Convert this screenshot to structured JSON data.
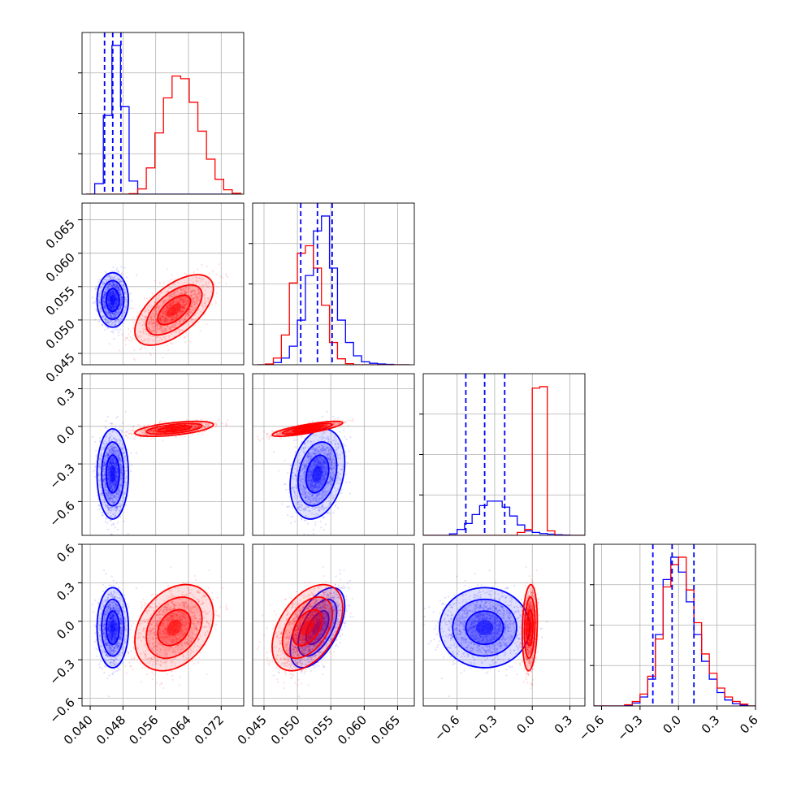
{
  "chart_data": {
    "type": "corner",
    "grid": true,
    "series": [
      {
        "color": "#0000ff",
        "means": [
          0.0455,
          0.053,
          -0.38,
          -0.05
        ],
        "sds": [
          0.0016,
          0.0017,
          0.15,
          0.13
        ],
        "corr": [
          0.0,
          0.0,
          0.25,
          0.0,
          0.55,
          0.0
        ],
        "quantiles": [
          [
            0.0435,
            0.0455,
            0.0475
          ],
          [
            0.0505,
            0.053,
            0.0552
          ],
          [
            -0.53,
            -0.38,
            -0.22
          ],
          [
            -0.2,
            -0.05,
            0.12
          ]
        ]
      },
      {
        "color": "#ff0000",
        "means": [
          0.0605,
          0.0515,
          -0.02,
          -0.05
        ],
        "sds": [
          0.004,
          0.0022,
          0.025,
          0.14
        ],
        "corr": [
          0.6,
          0.55,
          0.8,
          0.3,
          0.45,
          0.15
        ],
        "quantiles": []
      }
    ],
    "histograms": [
      {
        "bin_edges": [
          0.039,
          0.0411,
          0.0432,
          0.0453,
          0.0474,
          0.0495,
          0.0516,
          0.0537,
          0.0558,
          0.0579,
          0.06,
          0.0621,
          0.0642,
          0.0663,
          0.0684,
          0.0705,
          0.0726,
          0.0747,
          0.0768
        ],
        "series_counts": [
          [
            0,
            120,
            900,
            1700,
            1000,
            150,
            0,
            0,
            0,
            0,
            0,
            0,
            0,
            0,
            0,
            0,
            0,
            0
          ],
          [
            0,
            0,
            0,
            0,
            0,
            5,
            60,
            300,
            700,
            1100,
            1350,
            1320,
            1050,
            720,
            400,
            170,
            50,
            10
          ]
        ]
      },
      {
        "bin_edges": [
          0.044,
          0.0452,
          0.0464,
          0.0476,
          0.0488,
          0.05,
          0.0512,
          0.0524,
          0.0536,
          0.0548,
          0.056,
          0.0572,
          0.0584,
          0.0596,
          0.0608,
          0.062,
          0.0632,
          0.0644,
          0.0656,
          0.0668
        ],
        "series_counts": [
          [
            0,
            5,
            30,
            90,
            250,
            600,
            1200,
            1800,
            2000,
            1300,
            600,
            300,
            120,
            40,
            20,
            10,
            5,
            0,
            0
          ],
          [
            0,
            10,
            90,
            400,
            1100,
            1500,
            1600,
            1300,
            800,
            300,
            80,
            15,
            0,
            0,
            0,
            0,
            0,
            0,
            0
          ]
        ]
      },
      {
        "bin_edges": [
          -0.9,
          -0.84,
          -0.78,
          -0.72,
          -0.66,
          -0.6,
          -0.54,
          -0.48,
          -0.42,
          -0.36,
          -0.3,
          -0.24,
          -0.18,
          -0.12,
          -0.06,
          0.0,
          0.06,
          0.12,
          0.18,
          0.24,
          0.3,
          0.36,
          0.42
        ],
        "series_counts": [
          [
            0,
            0,
            0,
            0,
            10,
            40,
            80,
            140,
            200,
            230,
            230,
            190,
            130,
            70,
            30,
            20,
            12,
            8,
            4,
            2,
            0,
            0
          ],
          [
            0,
            0,
            0,
            0,
            0,
            0,
            0,
            0,
            0,
            0,
            0,
            0,
            0,
            20,
            40,
            990,
            1000,
            30,
            0,
            0,
            0,
            0
          ]
        ]
      },
      {
        "bin_edges": [
          -0.66,
          -0.6,
          -0.54,
          -0.48,
          -0.42,
          -0.36,
          -0.3,
          -0.24,
          -0.18,
          -0.12,
          -0.06,
          0.0,
          0.06,
          0.12,
          0.18,
          0.24,
          0.3,
          0.36,
          0.42,
          0.48,
          0.54,
          0.6
        ],
        "series_counts": [
          [
            0,
            0,
            0,
            0,
            5,
            20,
            60,
            180,
            480,
            850,
            1000,
            900,
            700,
            480,
            300,
            180,
            90,
            40,
            15,
            5,
            0
          ],
          [
            0,
            0,
            0,
            0,
            8,
            30,
            80,
            200,
            450,
            800,
            950,
            1000,
            780,
            560,
            350,
            220,
            120,
            60,
            30,
            12,
            0
          ]
        ]
      }
    ],
    "axes": [
      {
        "range": [
          0.038,
          0.0775
        ],
        "ticks": [
          0.04,
          0.048,
          0.056,
          0.064,
          0.072
        ],
        "tick_labels": [
          "0.040",
          "0.048",
          "0.056",
          "0.064",
          "0.072"
        ]
      },
      {
        "range": [
          0.0433,
          0.0675
        ],
        "ticks": [
          0.045,
          0.05,
          0.055,
          0.06,
          0.065
        ],
        "tick_labels": [
          "0.045",
          "0.050",
          "0.055",
          "0.060",
          "0.065"
        ]
      },
      {
        "range": [
          -0.87,
          0.42
        ],
        "ticks": [
          -0.6,
          -0.3,
          0.0,
          0.3
        ],
        "tick_labels": [
          "−0.6",
          "−0.3",
          "0.0",
          "0.3"
        ]
      },
      {
        "range": [
          -0.66,
          0.6
        ],
        "ticks": [
          -0.6,
          -0.3,
          0.0,
          0.3,
          0.6
        ],
        "tick_labels": [
          "−0.6",
          "−0.3",
          "0.0",
          "0.3",
          "0.6"
        ]
      }
    ],
    "xlabel": "",
    "ylabel": "",
    "title": ""
  }
}
